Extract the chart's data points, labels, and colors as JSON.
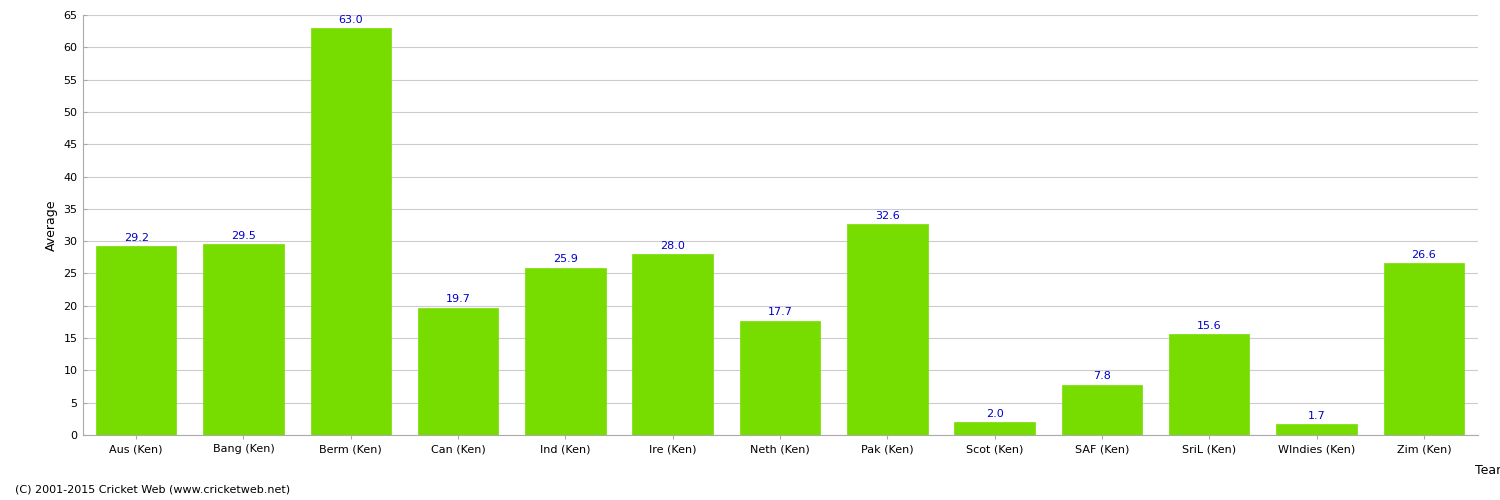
{
  "categories": [
    "Aus (Ken)",
    "Bang (Ken)",
    "Berm (Ken)",
    "Can (Ken)",
    "Ind (Ken)",
    "Ire (Ken)",
    "Neth (Ken)",
    "Pak (Ken)",
    "Scot (Ken)",
    "SAF (Ken)",
    "SriL (Ken)",
    "WIndies (Ken)",
    "Zim (Ken)"
  ],
  "values": [
    29.2,
    29.5,
    63.0,
    19.7,
    25.9,
    28.0,
    17.7,
    32.6,
    2.0,
    7.8,
    15.6,
    1.7,
    26.6
  ],
  "bar_color": "#77DD00",
  "bar_edge_color": "#77DD00",
  "label_color": "#0000CC",
  "xlabel": "Team",
  "ylabel": "Average",
  "ylim": [
    0,
    65
  ],
  "yticks": [
    0,
    5,
    10,
    15,
    20,
    25,
    30,
    35,
    40,
    45,
    50,
    55,
    60,
    65
  ],
  "background_color": "#ffffff",
  "grid_color": "#cccccc",
  "footer_text": "(C) 2001-2015 Cricket Web (www.cricketweb.net)",
  "label_fontsize": 8,
  "axis_label_fontsize": 9,
  "tick_fontsize": 8
}
